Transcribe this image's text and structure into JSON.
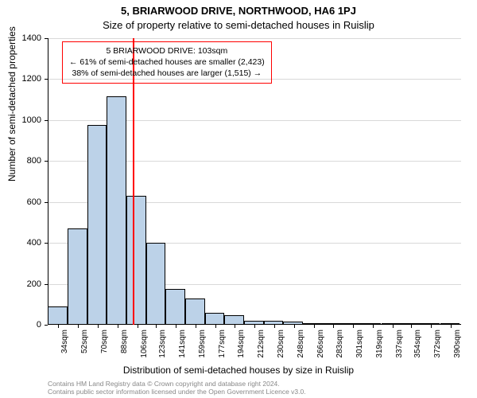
{
  "title": "5, BRIARWOOD DRIVE, NORTHWOOD, HA6 1PJ",
  "subtitle": "Size of property relative to semi-detached houses in Ruislip",
  "ylabel": "Number of semi-detached properties",
  "xlabel": "Distribution of semi-detached houses by size in Ruislip",
  "attribution_line1": "Contains HM Land Registry data © Crown copyright and database right 2024.",
  "attribution_line2": "Contains public sector information licensed under the Open Government Licence v3.0.",
  "chart": {
    "type": "histogram",
    "background_color": "#ffffff",
    "bar_fill_color": "#bcd2e8",
    "bar_border_color": "#000000",
    "grid_color": "#000000",
    "grid_opacity": 0.15,
    "ref_line_color": "#ff0000",
    "ref_line_x": 103,
    "annotation_border_color": "#ff0000",
    "annotation_text1": "5 BRIARWOOD DRIVE: 103sqm",
    "annotation_text2": "← 61% of semi-detached houses are smaller (2,423)",
    "annotation_text3": "38% of semi-detached houses are larger (1,515) →",
    "annotation_fontsize": 10.5,
    "title_fontsize": 13,
    "label_fontsize": 12,
    "tick_fontsize": 11,
    "xtick_fontsize": 10,
    "xlim": [
      25,
      399
    ],
    "ylim": [
      0,
      1400
    ],
    "ytick_step": 200,
    "yticks": [
      0,
      200,
      400,
      600,
      800,
      1000,
      1200,
      1400
    ],
    "xticks": [
      34,
      52,
      70,
      88,
      106,
      123,
      141,
      159,
      177,
      194,
      212,
      230,
      248,
      266,
      283,
      301,
      319,
      337,
      354,
      372,
      390
    ],
    "xtick_suffix": "sqm",
    "bin_width": 17.7,
    "bars": [
      {
        "x": 25.3,
        "y": 90
      },
      {
        "x": 43.0,
        "y": 470
      },
      {
        "x": 60.8,
        "y": 975
      },
      {
        "x": 78.5,
        "y": 1115
      },
      {
        "x": 96.2,
        "y": 630
      },
      {
        "x": 114.0,
        "y": 400
      },
      {
        "x": 131.7,
        "y": 175
      },
      {
        "x": 149.4,
        "y": 130
      },
      {
        "x": 167.2,
        "y": 60
      },
      {
        "x": 184.9,
        "y": 45
      },
      {
        "x": 202.6,
        "y": 20
      },
      {
        "x": 220.4,
        "y": 18
      },
      {
        "x": 238.1,
        "y": 16
      },
      {
        "x": 255.8,
        "y": 4
      },
      {
        "x": 273.6,
        "y": 3
      },
      {
        "x": 291.3,
        "y": 2
      },
      {
        "x": 309.0,
        "y": 2
      },
      {
        "x": 326.8,
        "y": 1
      },
      {
        "x": 344.5,
        "y": 1
      },
      {
        "x": 362.2,
        "y": 1
      },
      {
        "x": 380.0,
        "y": 1
      }
    ]
  }
}
